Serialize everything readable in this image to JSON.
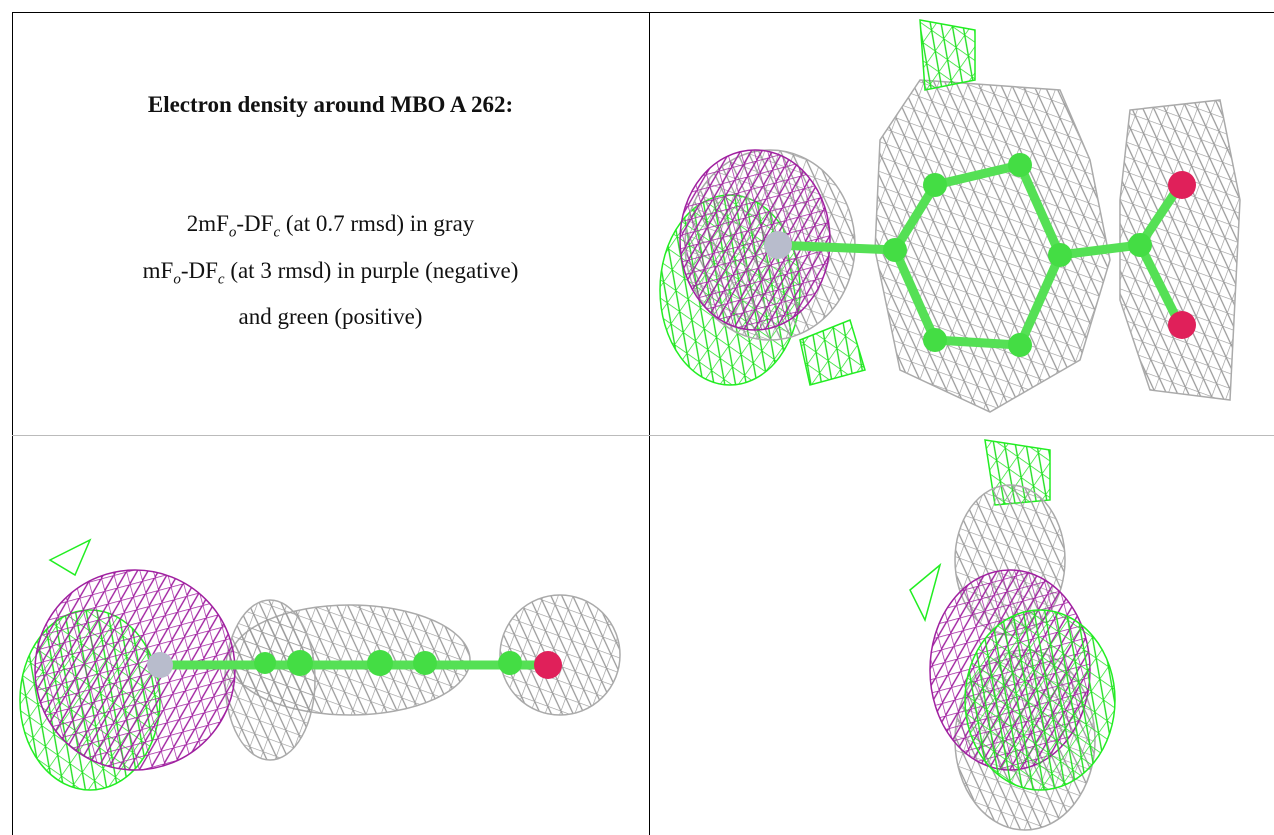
{
  "header": {
    "title": "Electron density around MBO A 262:"
  },
  "legend": {
    "lines": [
      [
        "2mF",
        "o",
        "-DF",
        "c",
        " (at 0.7 rmsd) in gray"
      ],
      [
        "mF",
        "o",
        "-DF",
        "c",
        " (at 3 rmsd) in purple (negative)"
      ],
      [
        "and green (positive)"
      ]
    ]
  }
}
